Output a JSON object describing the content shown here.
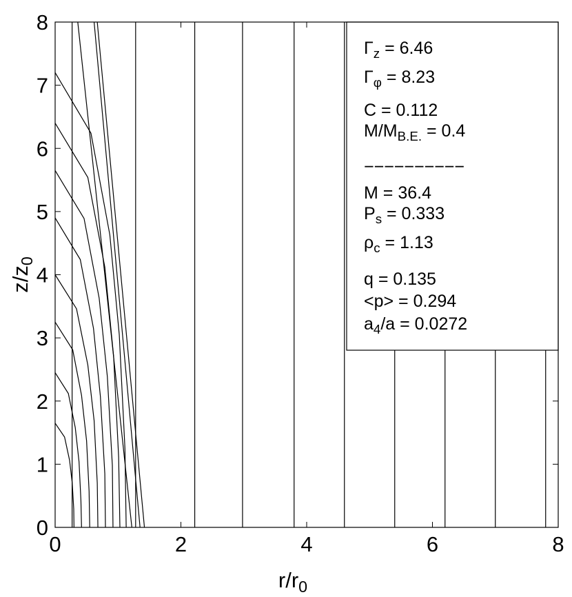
{
  "chart_data": {
    "type": "line",
    "xlim": [
      0,
      8
    ],
    "ylim": [
      0,
      8
    ],
    "xticks": [
      0,
      2,
      4,
      6,
      8
    ],
    "yticks": [
      0,
      1,
      2,
      3,
      4,
      5,
      6,
      7,
      8
    ],
    "xlabel": [
      "r/r",
      "0"
    ],
    "ylabel": [
      "z/z",
      "0"
    ],
    "color": "#000000",
    "series": [
      {
        "x": [
          0,
          0.15,
          0.23,
          0.272,
          0.296,
          0.3
        ],
        "values": [
          1.65,
          1.43,
          1.06,
          0.7,
          0.29,
          0
        ]
      },
      {
        "x": [
          0,
          0.21,
          0.32,
          0.38,
          0.41,
          0.42
        ],
        "values": [
          2.45,
          2.12,
          1.58,
          1.04,
          0.43,
          0
        ]
      },
      {
        "x": [
          0,
          0.28,
          0.42,
          0.5,
          0.54,
          0.55
        ],
        "values": [
          3.25,
          2.81,
          2.09,
          1.37,
          0.57,
          0
        ]
      },
      {
        "x": [
          0,
          0.34,
          0.52,
          0.62,
          0.67,
          0.68
        ],
        "values": [
          4,
          3.46,
          2.57,
          1.69,
          0.7,
          0
        ]
      },
      {
        "x": [
          0,
          0.4,
          0.61,
          0.72,
          0.79,
          0.8
        ],
        "values": [
          4.9,
          4.24,
          3.15,
          2.07,
          0.85,
          0
        ]
      },
      {
        "x": [
          0,
          0.46,
          0.7,
          0.83,
          0.91,
          0.92
        ],
        "values": [
          5.65,
          4.89,
          3.63,
          2.39,
          0.98,
          0
        ]
      },
      {
        "x": [
          0,
          0.52,
          0.79,
          0.93,
          1.01,
          1.03
        ],
        "values": [
          6.4,
          5.54,
          4.12,
          2.71,
          1.11,
          0
        ]
      },
      {
        "x": [
          0,
          0.57,
          0.87,
          1.02,
          1.11,
          1.13
        ],
        "values": [
          7.2,
          6.24,
          4.63,
          3.05,
          1.25,
          0
        ]
      },
      {
        "x": [
          0.27,
          0.27
        ],
        "values": [
          0,
          8
        ]
      },
      {
        "x": [
          0.36,
          1.22
        ],
        "values": [
          8,
          0
        ]
      },
      {
        "x": [
          0.62,
          1.35
        ],
        "values": [
          8,
          0
        ]
      },
      {
        "x": [
          0.67,
          1.42
        ],
        "values": [
          8,
          0
        ]
      },
      {
        "x": [
          1.28,
          1.28
        ],
        "values": [
          0,
          8
        ]
      },
      {
        "x": [
          2.22,
          2.22
        ],
        "values": [
          0,
          8
        ]
      },
      {
        "x": [
          2.98,
          2.98
        ],
        "values": [
          0,
          8
        ]
      },
      {
        "x": [
          3.8,
          3.8
        ],
        "values": [
          0,
          8
        ]
      },
      {
        "x": [
          4.6,
          4.6
        ],
        "values": [
          0,
          8
        ]
      },
      {
        "x": [
          5.4,
          5.4
        ],
        "values": [
          0,
          8
        ]
      },
      {
        "x": [
          6.2,
          6.2
        ],
        "values": [
          0,
          8
        ]
      },
      {
        "x": [
          7.0,
          7.0
        ],
        "values": [
          0,
          8
        ]
      },
      {
        "x": [
          7.8,
          7.8
        ],
        "values": [
          0,
          8
        ]
      }
    ],
    "annotations": [
      [
        "Γ",
        "z",
        " = 6.46"
      ],
      [
        "Γ",
        "φ",
        " = 8.23"
      ],
      [
        "C = 0.112"
      ],
      [
        "M/M",
        "B.E.",
        " = 0.4"
      ],
      [
        "−−−−−−−−−−"
      ],
      [
        "M = 36.4"
      ],
      [
        "P",
        "s",
        " = 0.333"
      ],
      [
        "ρ",
        "c",
        " = 1.13"
      ],
      [
        "q = 0.135"
      ],
      [
        "<p> = 0.294"
      ],
      [
        "a",
        "4",
        "/a = 0.0272"
      ]
    ]
  }
}
